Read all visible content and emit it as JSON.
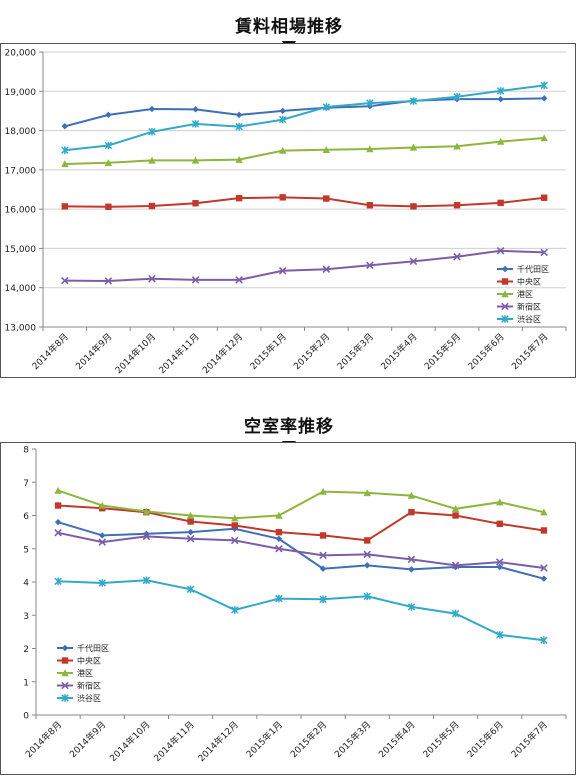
{
  "chart_data": [
    {
      "type": "line",
      "title": "賃料相場推移",
      "xlabel": "",
      "ylabel": "",
      "ylim": [
        13000,
        20000
      ],
      "yticks": [
        13000,
        14000,
        15000,
        16000,
        17000,
        18000,
        19000,
        20000
      ],
      "ytick_labels": [
        "13,000",
        "14,000",
        "15,000",
        "16,000",
        "17,000",
        "18,000",
        "19,000",
        "20,000"
      ],
      "grid": true,
      "legend_position": "bottom-right",
      "categories": [
        "2014年8月",
        "2014年9月",
        "2014年10月",
        "2014年11月",
        "2014年12月",
        "2015年1月",
        "2015年2月",
        "2015年3月",
        "2015年4月",
        "2015年5月",
        "2015年6月",
        "2015年7月"
      ],
      "series": [
        {
          "name": "千代田区",
          "color": "#3f6fb5",
          "marker": "diamond",
          "values": [
            18110,
            18400,
            18550,
            18540,
            18400,
            18500,
            18580,
            18620,
            18760,
            18800,
            18800,
            18820
          ]
        },
        {
          "name": "中央区",
          "color": "#c0392b",
          "marker": "square",
          "values": [
            16070,
            16060,
            16080,
            16150,
            16280,
            16300,
            16270,
            16100,
            16070,
            16100,
            16160,
            16290
          ]
        },
        {
          "name": "港区",
          "color": "#8cb63c",
          "marker": "triangle",
          "values": [
            17150,
            17180,
            17240,
            17240,
            17260,
            17490,
            17510,
            17530,
            17570,
            17600,
            17720,
            17810
          ]
        },
        {
          "name": "新宿区",
          "color": "#7b5ea7",
          "marker": "x",
          "values": [
            14180,
            14170,
            14230,
            14200,
            14200,
            14430,
            14470,
            14570,
            14670,
            14790,
            14940,
            14900
          ]
        },
        {
          "name": "渋谷区",
          "color": "#33a9c9",
          "marker": "star",
          "values": [
            17500,
            17620,
            17970,
            18170,
            18100,
            18280,
            18600,
            18700,
            18750,
            18860,
            19010,
            19150
          ]
        }
      ]
    },
    {
      "type": "line",
      "title": "空室率推移",
      "xlabel": "",
      "ylabel": "",
      "ylim": [
        0,
        8
      ],
      "yticks": [
        0,
        1,
        2,
        3,
        4,
        5,
        6,
        7,
        8
      ],
      "ytick_labels": [
        "0",
        "1",
        "2",
        "3",
        "4",
        "5",
        "6",
        "7",
        "8"
      ],
      "grid": false,
      "legend_position": "bottom-left",
      "categories": [
        "2014年8月",
        "2014年9月",
        "2014年10月",
        "2014年11月",
        "2014年12月",
        "2015年1月",
        "2015年2月",
        "2015年3月",
        "2015年4月",
        "2015年5月",
        "2015年6月",
        "2015年7月"
      ],
      "series": [
        {
          "name": "千代田区",
          "color": "#3f6fb5",
          "marker": "diamond",
          "values": [
            5.8,
            5.4,
            5.45,
            5.5,
            5.6,
            5.3,
            4.4,
            4.5,
            4.38,
            4.45,
            4.45,
            4.1
          ]
        },
        {
          "name": "中央区",
          "color": "#c0392b",
          "marker": "square",
          "values": [
            6.3,
            6.22,
            6.1,
            5.82,
            5.7,
            5.5,
            5.4,
            5.25,
            6.1,
            6.0,
            5.75,
            5.55
          ]
        },
        {
          "name": "港区",
          "color": "#8cb63c",
          "marker": "triangle",
          "values": [
            6.75,
            6.3,
            6.12,
            6.0,
            5.92,
            6.0,
            6.72,
            6.68,
            6.6,
            6.2,
            6.4,
            6.1
          ]
        },
        {
          "name": "新宿区",
          "color": "#7b5ea7",
          "marker": "x",
          "values": [
            5.48,
            5.2,
            5.37,
            5.3,
            5.25,
            5.0,
            4.8,
            4.83,
            4.68,
            4.5,
            4.6,
            4.42
          ]
        },
        {
          "name": "渋谷区",
          "color": "#33a9c9",
          "marker": "star",
          "values": [
            4.02,
            3.97,
            4.05,
            3.78,
            3.16,
            3.5,
            3.48,
            3.57,
            3.25,
            3.05,
            2.41,
            2.25
          ]
        }
      ]
    }
  ]
}
